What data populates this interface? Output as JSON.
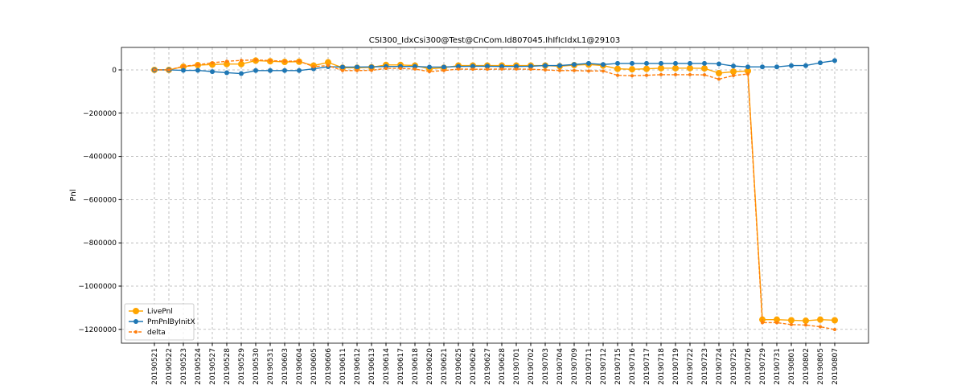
{
  "chart_data": {
    "type": "line",
    "title": "CSI300_IdxCsi300@Test@CnCom.Id807045.IhIfIcIdxL1@29103",
    "y_label": "Pnl",
    "categories": [
      "20190521",
      "20190522",
      "20190523",
      "20190524",
      "20190527",
      "20190528",
      "20190529",
      "20190530",
      "20190531",
      "20190603",
      "20190604",
      "20190605",
      "20190606",
      "20190611",
      "20190612",
      "20190613",
      "20190614",
      "20190617",
      "20190618",
      "20190620",
      "20190621",
      "20190625",
      "20190626",
      "20190627",
      "20190628",
      "20190701",
      "20190702",
      "20190703",
      "20190704",
      "20190709",
      "20190711",
      "20190712",
      "20190715",
      "20190716",
      "20190717",
      "20190718",
      "20190719",
      "20190722",
      "20190723",
      "20190724",
      "20190725",
      "20190726",
      "20190729",
      "20190731",
      "20190801",
      "20190802",
      "20190805",
      "20190807"
    ],
    "series": [
      {
        "name": "LivePnl",
        "color": "#ffa500",
        "linestyle": "solid",
        "marker_size": 4,
        "values": [
          0,
          0,
          15000,
          22000,
          25000,
          27000,
          27000,
          43000,
          40000,
          37000,
          38000,
          20000,
          35000,
          10000,
          10000,
          12000,
          23000,
          23000,
          20000,
          5000,
          10000,
          20000,
          20000,
          20000,
          20000,
          20000,
          20000,
          20000,
          17000,
          22000,
          25000,
          20000,
          5000,
          3000,
          5000,
          8000,
          8000,
          8000,
          7000,
          -15000,
          -8000,
          -5000,
          -1155000,
          -1155000,
          -1158000,
          -1160000,
          -1155000,
          -1158000
        ]
      },
      {
        "name": "PmPnlByInitX",
        "color": "#1f77b4",
        "linestyle": "solid",
        "marker_size": 3,
        "values": [
          0,
          0,
          -2000,
          -2000,
          -8000,
          -13000,
          -17000,
          -3000,
          -3000,
          -3000,
          -3000,
          5000,
          15000,
          13000,
          13000,
          14000,
          16000,
          16000,
          16000,
          13000,
          13000,
          16000,
          17000,
          17000,
          16000,
          16000,
          17000,
          20000,
          20000,
          25000,
          30000,
          25000,
          30000,
          30000,
          30000,
          30000,
          30000,
          30000,
          30000,
          28000,
          18000,
          14000,
          14000,
          14000,
          20000,
          20000,
          33000,
          43000
        ]
      },
      {
        "name": "delta",
        "color": "#ff7f0e",
        "linestyle": "dashed",
        "marker_size": 2,
        "values": [
          0,
          0,
          17000,
          24000,
          33000,
          40000,
          44000,
          46000,
          43000,
          40000,
          41000,
          15000,
          20000,
          -3000,
          -3000,
          -2000,
          7000,
          7000,
          4000,
          -8000,
          -3000,
          4000,
          3000,
          3000,
          4000,
          4000,
          3000,
          0,
          -3000,
          -3000,
          -5000,
          -5000,
          -25000,
          -27000,
          -25000,
          -22000,
          -22000,
          -22000,
          -23000,
          -43000,
          -26000,
          -19000,
          -1169000,
          -1169000,
          -1178000,
          -1180000,
          -1188000,
          -1201000
        ]
      }
    ],
    "ylim": [
      -1264000,
      104000
    ],
    "yticks": [
      {
        "value": -1200000,
        "label": "−1200000"
      },
      {
        "value": -1000000,
        "label": "−1000000"
      },
      {
        "value": -800000,
        "label": "−800000"
      },
      {
        "value": -600000,
        "label": "−600000"
      },
      {
        "value": -400000,
        "label": "−400000"
      },
      {
        "value": -200000,
        "label": "−200000"
      },
      0
    ],
    "grid": true,
    "legend": "lower left"
  }
}
